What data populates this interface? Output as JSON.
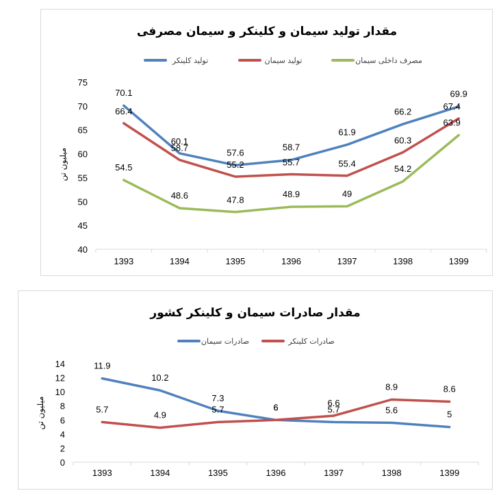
{
  "chart_data": [
    {
      "type": "line",
      "title": "مقدار تولید سیمان و کلینکر و سیمان مصرفی",
      "ylabel": "میلیون تن",
      "xlabel": "",
      "categories": [
        "1393",
        "1394",
        "1395",
        "1396",
        "1397",
        "1398",
        "1399"
      ],
      "ylim": [
        40,
        75
      ],
      "yticks": [
        40,
        45,
        50,
        55,
        60,
        65,
        70,
        75
      ],
      "grid": false,
      "legend_position": "top",
      "series": [
        {
          "name": "تولید کلینکر",
          "color": "#4f81bd",
          "values": [
            70.1,
            60.1,
            57.6,
            58.7,
            61.9,
            66.2,
            69.9
          ]
        },
        {
          "name": "تولید سیمان",
          "color": "#c0504d",
          "values": [
            66.4,
            58.7,
            55.2,
            55.7,
            55.4,
            60.3,
            67.4
          ]
        },
        {
          "name": "مصرف داخلی سیمان",
          "color": "#9bbb59",
          "values": [
            54.5,
            48.6,
            47.8,
            48.9,
            49,
            54.2,
            63.9
          ]
        }
      ]
    },
    {
      "type": "line",
      "title": "مقدار صادرات سیمان و کلینکر کشور",
      "ylabel": "میلیون تن",
      "xlabel": "",
      "categories": [
        "1393",
        "1394",
        "1395",
        "1396",
        "1397",
        "1398",
        "1399"
      ],
      "ylim": [
        0,
        14
      ],
      "yticks": [
        0,
        2,
        4,
        6,
        8,
        10,
        12,
        14
      ],
      "grid": false,
      "legend_position": "top",
      "series": [
        {
          "name": "صادرات سیمان",
          "color": "#4f81bd",
          "values": [
            11.9,
            10.2,
            7.3,
            6,
            5.7,
            5.6,
            5
          ]
        },
        {
          "name": "صادرات کلینکر",
          "color": "#c0504d",
          "values": [
            5.7,
            4.9,
            5.7,
            6,
            6.6,
            8.9,
            8.6
          ]
        }
      ]
    }
  ]
}
